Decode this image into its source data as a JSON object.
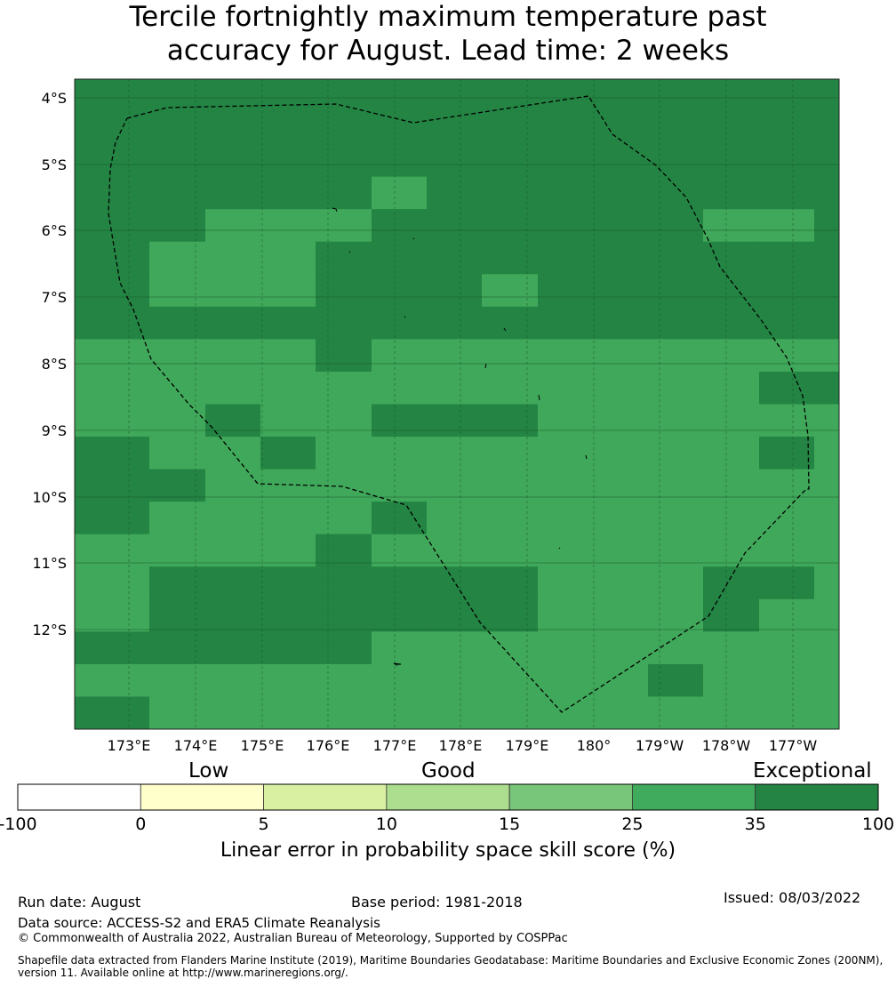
{
  "title_line1": "Tercile fortnightly maximum temperature past",
  "title_line2": "accuracy for August. Lead time: 2 weeks",
  "map": {
    "lat_labels": [
      "4°S",
      "5°S",
      "6°S",
      "7°S",
      "8°S",
      "9°S",
      "10°S",
      "11°S",
      "12°S"
    ],
    "lon_labels": [
      "173°E",
      "174°E",
      "175°E",
      "176°E",
      "177°E",
      "178°E",
      "179°E",
      "180°",
      "179°W",
      "178°W",
      "177°W"
    ],
    "colors": {
      "1": "#40a85a",
      "2": "#238443",
      "3": "#d9f0a3"
    },
    "grid_rows": [
      "22222222222222",
      "22222222222222",
      "22222222222222",
      "22222122222222",
      "22111222222112",
      "21112222222222",
      "21112221222222",
      "22222222222222",
      "11112111111111",
      "11111111111122",
      "11211222111111",
      "21121111111121",
      "22111111111111",
      "21111211111111",
      "11112111111111",
      "12222222111221",
      "12222222111211",
      "22222111111111",
      "11111111112111",
      "21111111111111"
    ]
  },
  "colorbar": {
    "categories": [
      "Low",
      "Good",
      "Exceptional"
    ],
    "ticks": [
      "-100",
      "0",
      "5",
      "10",
      "15",
      "25",
      "35",
      "100"
    ],
    "colors": [
      "#ffffff",
      "#ffffcc",
      "#d9f0a3",
      "#addd8e",
      "#78c679",
      "#41ab5d",
      "#238443"
    ],
    "label": "Linear error in probability space skill score (%)"
  },
  "footer": {
    "run_date": "Run date: August",
    "base_period": "Base period: 1981-2018",
    "issued": "Issued: 08/03/2022",
    "data_source": "Data source: ACCESS-S2 and ERA5 Climate Reanalysis",
    "copyright": "© Commonwealth of Australia 2022, Australian Bureau of Meteorology, Supported by COSPPac",
    "shapefile": "Shapefile data extracted from Flanders Marine Institute (2019), Maritime Boundaries Geodatabase: Maritime Boundaries and Exclusive Economic Zones (200NM), version 11. Available online at http://www.marineregions.org/."
  }
}
